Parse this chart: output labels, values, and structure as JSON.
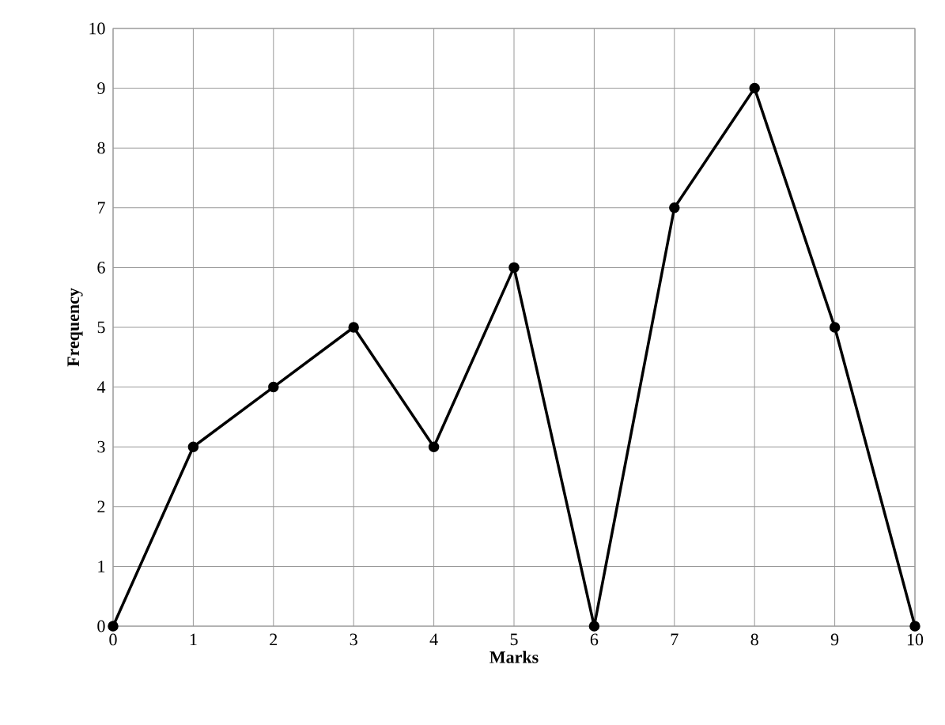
{
  "chart_data": {
    "type": "line",
    "xlabel": "Marks",
    "ylabel": "Frequency",
    "x": [
      0,
      1,
      2,
      3,
      4,
      5,
      6,
      7,
      8,
      9,
      10
    ],
    "series": [
      {
        "color": "#000000",
        "values": [
          0,
          3,
          4,
          5,
          3,
          6,
          0,
          7,
          9,
          5,
          0
        ]
      }
    ],
    "xlim": [
      0,
      10
    ],
    "ylim": [
      0,
      10
    ],
    "xticks": [
      0,
      1,
      2,
      3,
      4,
      5,
      6,
      7,
      8,
      9,
      10
    ],
    "yticks": [
      0,
      1,
      2,
      3,
      4,
      5,
      6,
      7,
      8,
      9,
      10
    ],
    "grid": true,
    "marker": "circle",
    "line_style": "solid"
  }
}
